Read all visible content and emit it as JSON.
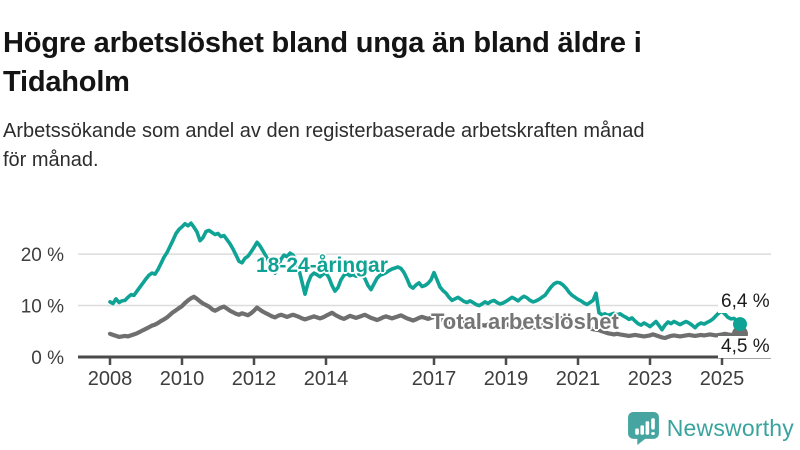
{
  "header": {
    "title_lines": [
      "Högre arbetslöshet bland unga än bland äldre i",
      "Tidaholm"
    ],
    "subtitle_lines": [
      "Arbetssökande som andel av den registerbaserade arbetskraften månad",
      "för månad."
    ]
  },
  "chart_data": {
    "type": "line",
    "title": "Högre arbetslöshet bland unga än bland äldre i Tidaholm",
    "subtitle": "Arbetssökande som andel av den registerbaserade arbetskraften månad för månad.",
    "unit": "%",
    "x_start_year": 2008,
    "x_step_months": 1,
    "x_end_label_period": "mitten av 2025",
    "x_ticks": [
      2008,
      2010,
      2012,
      2014,
      2017,
      2019,
      2021,
      2023,
      2025
    ],
    "y_ticks": [
      {
        "value": 0,
        "label": "0 %"
      },
      {
        "value": 10,
        "label": "10 %"
      },
      {
        "value": 20,
        "label": "20 %"
      }
    ],
    "ylim": [
      0,
      27
    ],
    "grid": true,
    "legend_position": "inline-labels",
    "series": [
      {
        "name": "18-24-åringar",
        "color": "#0FA396",
        "end_label": "6,4 %",
        "end_value": 6.4,
        "values": [
          10.7,
          10.4,
          11.3,
          10.6,
          10.9,
          11.0,
          11.6,
          12.1,
          12.0,
          12.8,
          13.6,
          14.4,
          15.2,
          15.9,
          16.3,
          16.1,
          17.0,
          18.2,
          19.4,
          20.3,
          21.5,
          22.7,
          24.0,
          24.8,
          25.3,
          25.9,
          25.5,
          26.0,
          25.2,
          24.3,
          22.6,
          23.2,
          24.4,
          24.6,
          24.2,
          23.8,
          24.0,
          23.4,
          23.6,
          22.8,
          22.0,
          21.0,
          19.8,
          18.6,
          18.3,
          19.2,
          19.6,
          20.4,
          21.3,
          22.3,
          21.6,
          20.6,
          19.6,
          18.4,
          16.8,
          16.3,
          17.5,
          19.0,
          19.8,
          19.5,
          20.2,
          19.8,
          18.8,
          16.9,
          14.6,
          12.2,
          14.4,
          15.8,
          16.3,
          16.0,
          15.6,
          16.1,
          16.3,
          15.4,
          13.9,
          12.8,
          13.5,
          15.0,
          15.9,
          16.2,
          15.8,
          16.0,
          15.7,
          15.9,
          16.0,
          15.2,
          13.9,
          13.1,
          14.2,
          15.3,
          15.9,
          16.1,
          16.4,
          16.8,
          17.1,
          17.3,
          17.5,
          17.2,
          16.4,
          15.2,
          13.8,
          13.4,
          14.0,
          14.4,
          13.7,
          13.9,
          14.3,
          15.0,
          16.4,
          15.0,
          13.6,
          12.9,
          12.4,
          11.6,
          11.0,
          11.3,
          11.6,
          11.2,
          10.8,
          10.6,
          10.9,
          10.6,
          10.2,
          10.0,
          10.3,
          10.7,
          10.4,
          10.8,
          11.0,
          10.6,
          10.3,
          10.5,
          10.8,
          11.2,
          11.6,
          11.3,
          10.9,
          11.4,
          11.8,
          11.5,
          11.0,
          10.7,
          10.9,
          11.2,
          11.6,
          12.0,
          12.8,
          13.6,
          14.2,
          14.5,
          14.4,
          14.0,
          13.4,
          12.6,
          12.0,
          11.6,
          11.2,
          10.9,
          10.5,
          10.2,
          10.6,
          11.0,
          12.4,
          8.6,
          8.2,
          8.4,
          8.1,
          8.3,
          8.5,
          8.2,
          8.4,
          8.0,
          7.7,
          7.3,
          7.6,
          7.0,
          6.5,
          6.2,
          6.6,
          6.3,
          5.9,
          6.4,
          6.9,
          6.1,
          5.3,
          6.2,
          6.8,
          6.5,
          6.9,
          6.6,
          6.3,
          6.6,
          6.9,
          6.6,
          6.2,
          5.7,
          6.3,
          6.6,
          6.4,
          6.7,
          7.0,
          7.4,
          8.0,
          8.6,
          8.9,
          8.3,
          7.7,
          7.4,
          7.5,
          7.0,
          6.4
        ]
      },
      {
        "name": "Total arbetslöshet",
        "color": "#6F6F6F",
        "end_label": "4,5 %",
        "end_value": 4.5,
        "values": [
          4.5,
          4.3,
          4.1,
          3.9,
          4.0,
          4.1,
          4.0,
          4.2,
          4.4,
          4.6,
          4.9,
          5.2,
          5.5,
          5.8,
          6.1,
          6.3,
          6.6,
          7.0,
          7.3,
          7.7,
          8.2,
          8.7,
          9.1,
          9.5,
          9.9,
          10.5,
          11.0,
          11.4,
          11.7,
          11.3,
          10.8,
          10.4,
          10.1,
          9.8,
          9.3,
          9.0,
          9.3,
          9.6,
          9.8,
          9.4,
          9.0,
          8.7,
          8.4,
          8.2,
          8.5,
          8.3,
          8.1,
          8.5,
          9.0,
          9.6,
          9.2,
          8.8,
          8.5,
          8.2,
          7.9,
          7.7,
          8.0,
          8.2,
          8.0,
          7.8,
          8.0,
          8.2,
          8.0,
          7.8,
          7.5,
          7.3,
          7.5,
          7.7,
          7.9,
          7.7,
          7.5,
          7.7,
          8.0,
          8.3,
          8.6,
          8.2,
          7.9,
          7.6,
          7.4,
          7.7,
          8.0,
          7.8,
          7.6,
          7.8,
          8.0,
          8.2,
          7.9,
          7.6,
          7.4,
          7.2,
          7.4,
          7.7,
          7.9,
          7.7,
          7.5,
          7.7,
          7.9,
          8.1,
          7.8,
          7.5,
          7.3,
          7.1,
          7.3,
          7.6,
          7.8,
          7.6,
          7.4,
          7.6,
          7.8,
          7.6,
          7.3,
          7.1,
          6.9,
          6.7,
          6.9,
          7.1,
          7.0,
          6.8,
          6.6,
          6.8,
          7.0,
          6.8,
          6.6,
          6.4,
          6.2,
          6.1,
          6.3,
          6.5,
          6.4,
          6.2,
          6.0,
          6.2,
          6.4,
          6.2,
          6.0,
          5.9,
          5.8,
          5.7,
          5.9,
          6.1,
          6.0,
          5.8,
          5.7,
          5.9,
          6.1,
          6.3,
          6.8,
          7.2,
          7.5,
          7.7,
          7.6,
          7.4,
          7.2,
          7.0,
          6.8,
          6.6,
          6.4,
          6.2,
          6.0,
          5.8,
          5.6,
          5.4,
          5.3,
          5.2,
          5.0,
          4.8,
          4.6,
          4.5,
          4.4,
          4.5,
          4.4,
          4.3,
          4.2,
          4.1,
          4.2,
          4.3,
          4.2,
          4.1,
          4.0,
          4.1,
          4.2,
          4.4,
          4.2,
          4.0,
          3.8,
          3.7,
          3.9,
          4.1,
          4.2,
          4.1,
          4.0,
          4.1,
          4.2,
          4.3,
          4.2,
          4.1,
          4.2,
          4.3,
          4.2,
          4.3,
          4.4,
          4.3,
          4.2,
          4.3,
          4.4,
          4.5,
          4.4,
          4.3,
          4.4,
          4.4,
          4.5
        ]
      }
    ]
  },
  "style": {
    "grid_color": "#DCDCDC",
    "axis_color": "#4A4A4A",
    "tick_text_color": "#3E3E3E",
    "end_label_color": "#1B1B1B"
  },
  "footer": {
    "brand": "Newsworthy",
    "brand_color": "#3AA39D",
    "logo_color": "#47A5A1",
    "logo_icon": "bar-chart-speech-bubble-icon"
  }
}
